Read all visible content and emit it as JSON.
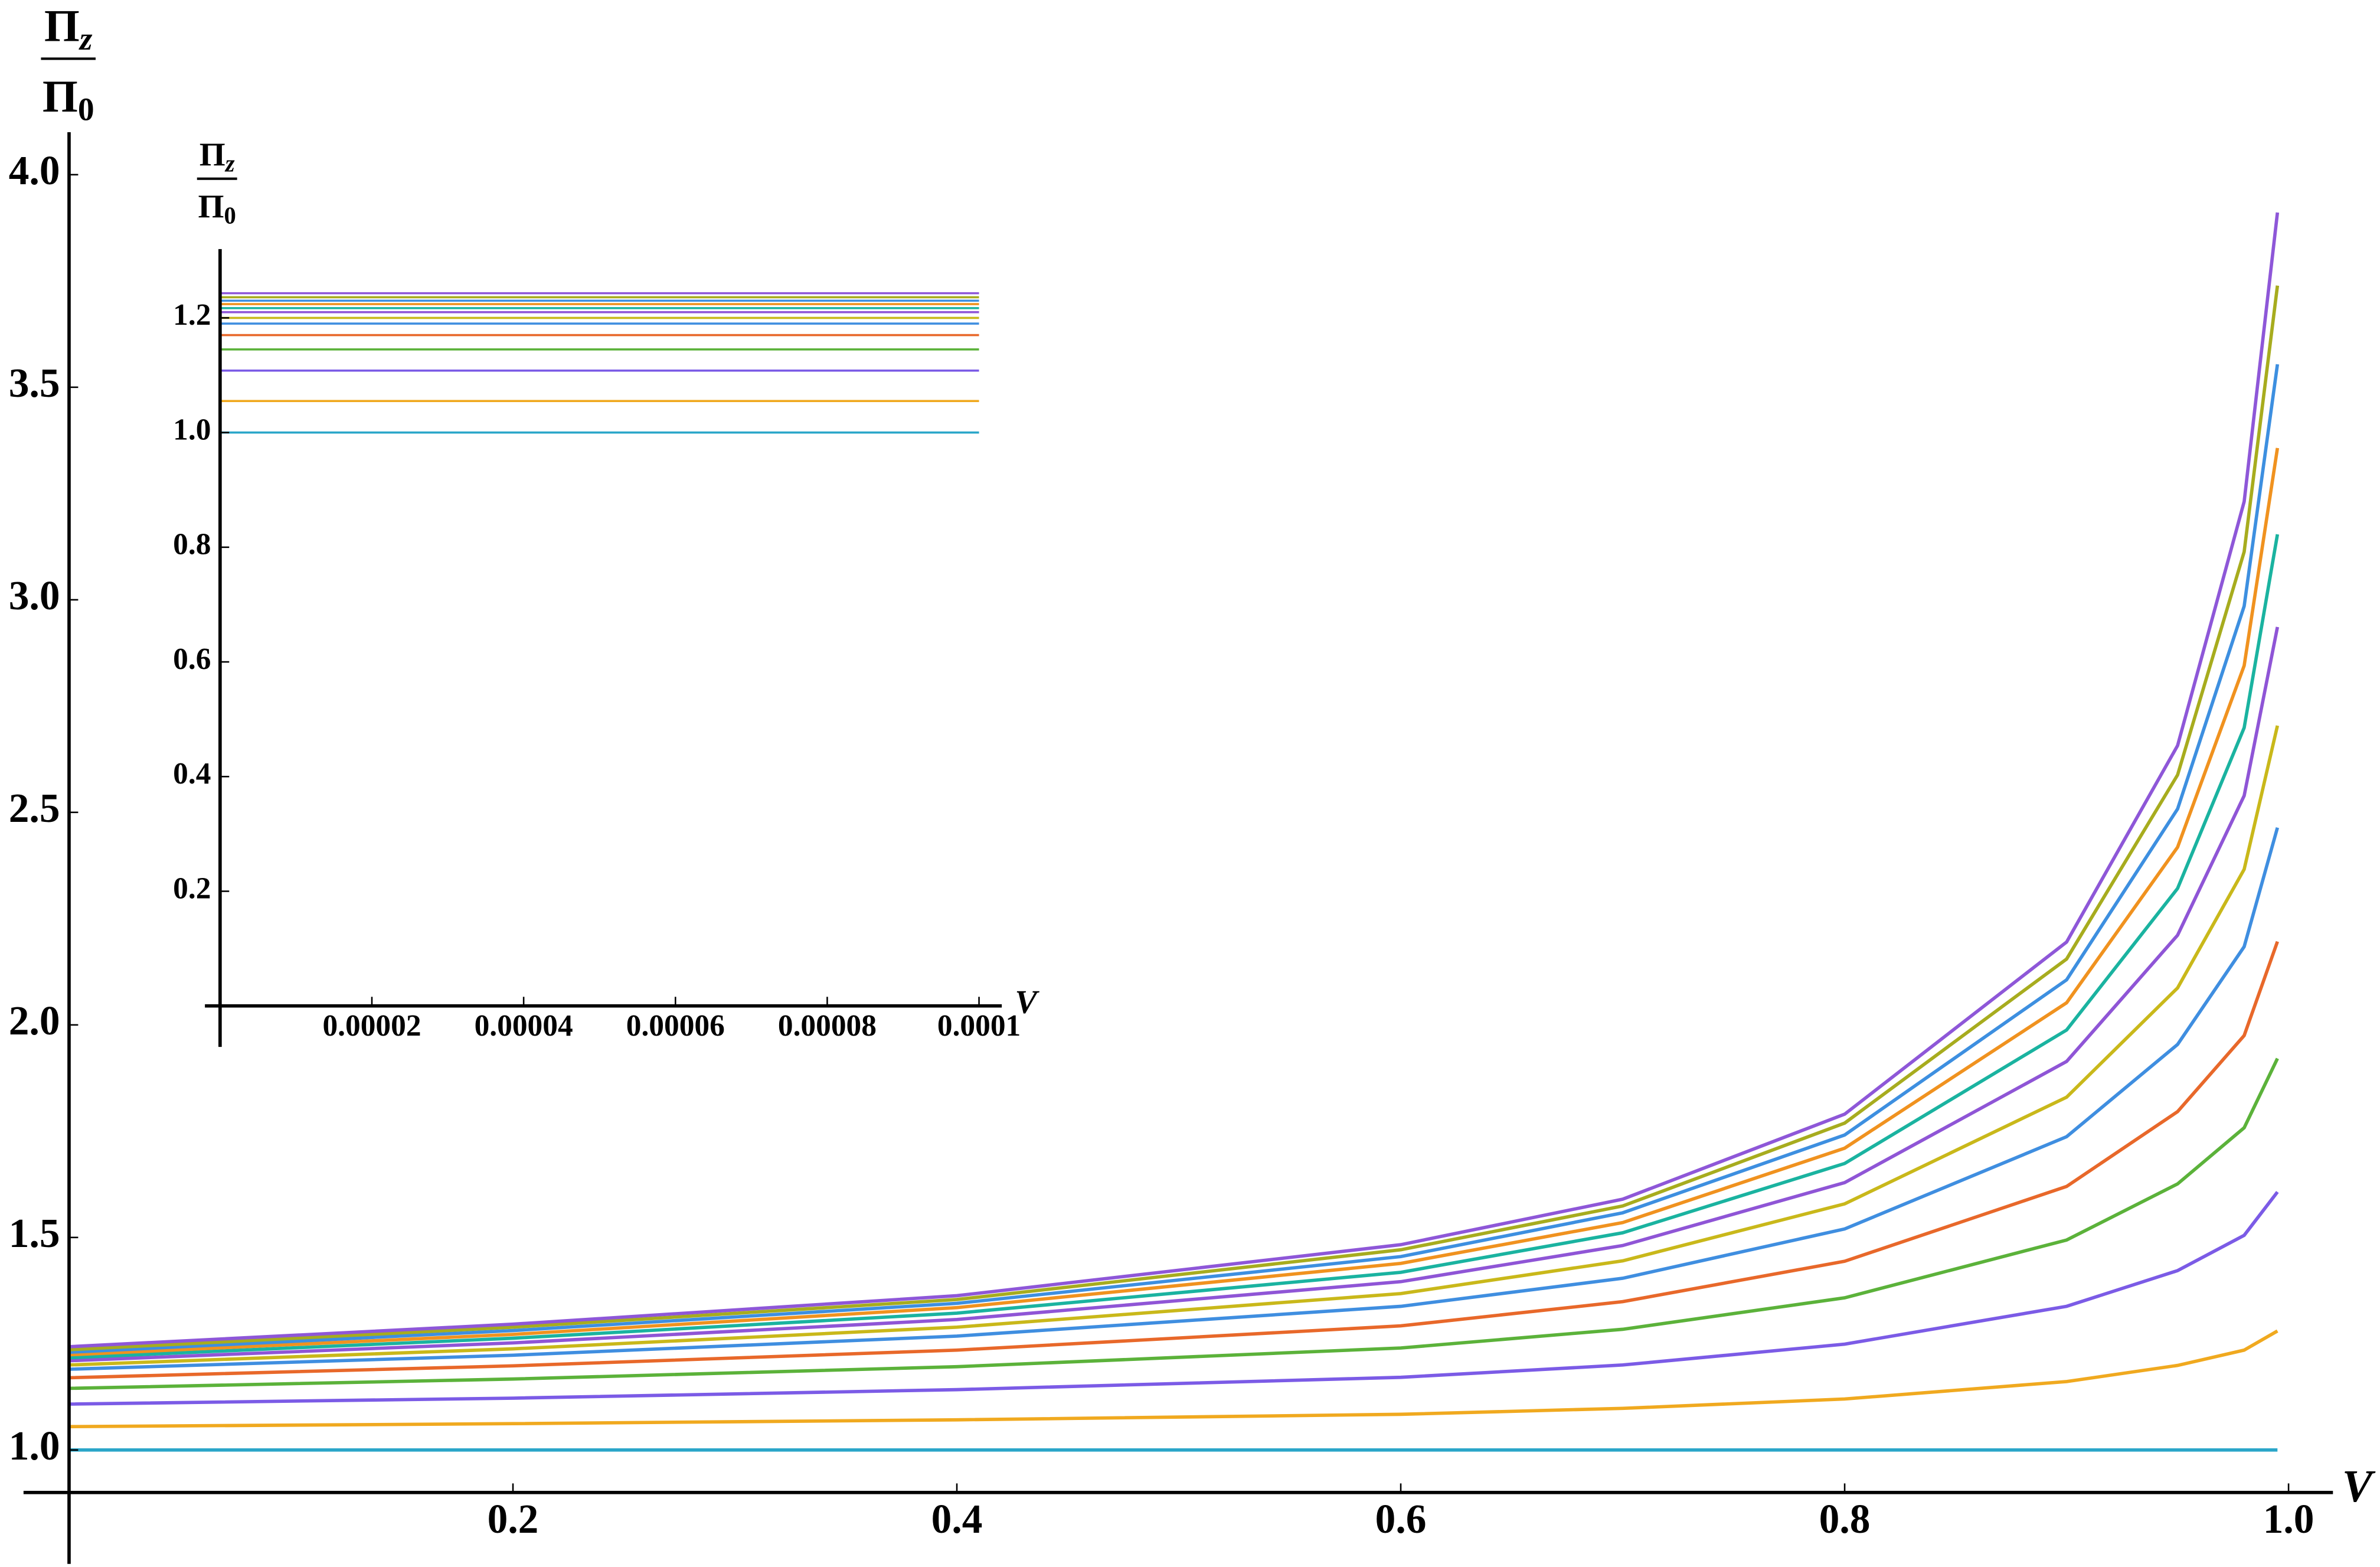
{
  "chart_data": [
    {
      "type": "line",
      "x_label": "V",
      "y_label": {
        "numerator": "Π",
        "numerator_subscript": "z",
        "denominator": "Π",
        "denominator_subscript": "0"
      },
      "x": [
        0,
        0.2,
        0.4,
        0.6,
        0.7,
        0.8,
        0.9,
        0.95,
        0.98,
        0.995
      ],
      "xlim": [
        0,
        1.02
      ],
      "ylim": [
        0.9,
        4.1
      ],
      "xticks": [
        0.2,
        0.4,
        0.6,
        0.8,
        {
          "value": 1,
          "label": "1.0"
        }
      ],
      "yticks": [
        {
          "value": 1,
          "label": "1.0"
        },
        1.5,
        {
          "value": 2,
          "label": "2.0"
        },
        2.5,
        {
          "value": 3,
          "label": "3.0"
        },
        3.5,
        {
          "value": 4,
          "label": "4.0"
        }
      ],
      "grid": false,
      "series": [
        {
          "color": "#2aa6c9",
          "values": [
            1,
            1,
            1,
            1,
            1,
            1,
            1,
            1,
            1,
            1
          ]
        },
        {
          "color": "#f0a91f",
          "values": [
            1.055,
            1.062,
            1.071,
            1.084,
            1.098,
            1.12,
            1.161,
            1.199,
            1.235,
            1.28
          ]
        },
        {
          "color": "#7b5be6",
          "values": [
            1.108,
            1.122,
            1.142,
            1.171,
            1.2,
            1.249,
            1.338,
            1.422,
            1.505,
            1.607
          ]
        },
        {
          "color": "#5bb23a",
          "values": [
            1.145,
            1.167,
            1.196,
            1.24,
            1.284,
            1.358,
            1.494,
            1.626,
            1.758,
            1.921
          ]
        },
        {
          "color": "#e8682a",
          "values": [
            1.17,
            1.198,
            1.235,
            1.292,
            1.349,
            1.444,
            1.62,
            1.796,
            1.975,
            2.196
          ]
        },
        {
          "color": "#3f8ee0",
          "values": [
            1.19,
            1.223,
            1.268,
            1.338,
            1.404,
            1.52,
            1.737,
            1.954,
            2.184,
            2.464
          ]
        },
        {
          "color": "#c9b81a",
          "values": [
            1.2,
            1.238,
            1.289,
            1.368,
            1.445,
            1.579,
            1.83,
            2.087,
            2.366,
            2.704
          ]
        },
        {
          "color": "#8f55d6",
          "values": [
            1.21,
            1.252,
            1.307,
            1.396,
            1.481,
            1.629,
            1.914,
            2.211,
            2.539,
            2.936
          ]
        },
        {
          "color": "#1ab3a0",
          "values": [
            1.217,
            1.263,
            1.322,
            1.418,
            1.511,
            1.674,
            1.988,
            2.321,
            2.699,
            3.154
          ]
        },
        {
          "color": "#f0921f",
          "values": [
            1.224,
            1.272,
            1.335,
            1.439,
            1.535,
            1.71,
            2.052,
            2.418,
            2.845,
            3.357
          ]
        },
        {
          "color": "#3d8fe0",
          "values": [
            1.23,
            1.281,
            1.345,
            1.455,
            1.558,
            1.741,
            2.106,
            2.508,
            2.985,
            3.554
          ]
        },
        {
          "color": "#a7ac1e",
          "values": [
            1.236,
            1.289,
            1.354,
            1.471,
            1.574,
            1.769,
            2.155,
            2.588,
            3.113,
            3.739
          ]
        },
        {
          "color": "#8e57d8",
          "values": [
            1.243,
            1.296,
            1.363,
            1.483,
            1.59,
            1.79,
            2.195,
            2.657,
            3.231,
            3.911
          ]
        }
      ]
    },
    {
      "type": "line",
      "x_label": "V",
      "y_label": {
        "numerator": "Π",
        "numerator_subscript": "z",
        "denominator": "Π",
        "denominator_subscript": "0"
      },
      "x": [
        0,
        0.0001
      ],
      "xlim": [
        0,
        0.000103
      ],
      "ylim": [
        0,
        1.32
      ],
      "xticks": [
        2e-05,
        4e-05,
        6e-05,
        8e-05,
        0.0001
      ],
      "yticks": [
        0.2,
        0.4,
        0.6,
        0.8,
        {
          "value": 1,
          "label": "1.0"
        },
        1.2
      ],
      "grid": false,
      "series": [
        {
          "color": "#2aa6c9",
          "values": [
            1,
            1
          ]
        },
        {
          "color": "#f0a91f",
          "values": [
            1.055,
            1.055
          ]
        },
        {
          "color": "#7b5be6",
          "values": [
            1.108,
            1.108
          ]
        },
        {
          "color": "#5bb23a",
          "values": [
            1.145,
            1.145
          ]
        },
        {
          "color": "#e8682a",
          "values": [
            1.17,
            1.17
          ]
        },
        {
          "color": "#3f8ee0",
          "values": [
            1.19,
            1.19
          ]
        },
        {
          "color": "#c9b81a",
          "values": [
            1.2,
            1.2
          ]
        },
        {
          "color": "#8f55d6",
          "values": [
            1.21,
            1.21
          ]
        },
        {
          "color": "#1ab3a0",
          "values": [
            1.217,
            1.217
          ]
        },
        {
          "color": "#f0921f",
          "values": [
            1.224,
            1.224
          ]
        },
        {
          "color": "#3d8fe0",
          "values": [
            1.23,
            1.23
          ]
        },
        {
          "color": "#a7ac1e",
          "values": [
            1.236,
            1.236
          ]
        },
        {
          "color": "#8e57d8",
          "values": [
            1.243,
            1.243
          ]
        }
      ]
    }
  ]
}
